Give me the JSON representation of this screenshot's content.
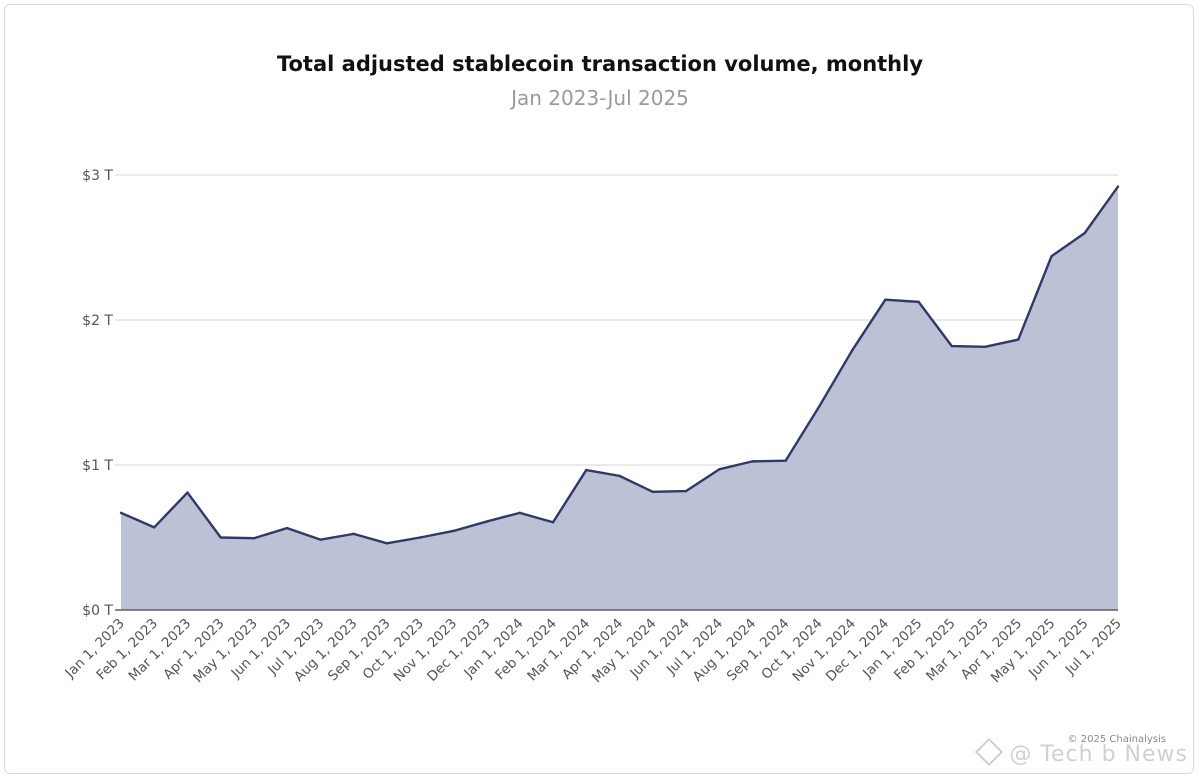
{
  "chart_data": {
    "type": "area",
    "title": "Total adjusted stablecoin transaction volume, monthly",
    "subtitle": "Jan 2023-Jul 2025",
    "x": [
      "Jan 1, 2023",
      "Feb 1, 2023",
      "Mar 1, 2023",
      "Apr 1, 2023",
      "May 1, 2023",
      "Jun 1, 2023",
      "Jul 1, 2023",
      "Aug 1, 2023",
      "Sep 1, 2023",
      "Oct 1, 2023",
      "Nov 1, 2023",
      "Dec 1, 2023",
      "Jan 1, 2024",
      "Feb 1, 2024",
      "Mar 1, 2024",
      "Apr 1, 2024",
      "May 1, 2024",
      "Jun 1, 2024",
      "Jul 1, 2024",
      "Aug 1, 2024",
      "Sep 1, 2024",
      "Oct 1, 2024",
      "Nov 1, 2024",
      "Dec 1, 2024",
      "Jan 1, 2025",
      "Feb 1, 2025",
      "Mar 1, 2025",
      "Apr 1, 2025",
      "May 1, 2025",
      "Jun 1, 2025",
      "Jul 1, 2025"
    ],
    "series": [
      {
        "values": [
          0.67,
          0.57,
          0.81,
          0.5,
          0.495,
          0.565,
          0.485,
          0.525,
          0.46,
          0.5,
          0.545,
          0.61,
          0.67,
          0.605,
          0.965,
          0.925,
          0.815,
          0.82,
          0.97,
          1.025,
          1.03,
          1.4,
          1.79,
          2.14,
          2.125,
          1.82,
          1.815,
          1.865,
          2.44,
          2.6,
          2.92
        ]
      }
    ],
    "yticks": [
      {
        "value": 0,
        "label": "$0 T"
      },
      {
        "value": 1,
        "label": "$1 T"
      },
      {
        "value": 2,
        "label": "$2 T"
      },
      {
        "value": 3,
        "label": "$3 T"
      }
    ],
    "ylim": [
      0,
      3
    ],
    "xlabel": "",
    "ylabel": "",
    "grid": true,
    "legend": "none",
    "colors": {
      "line": "#2f3a68",
      "fill": "#bcc1d5",
      "grid": "#d4d4d4",
      "axis": "#444444"
    }
  },
  "footer": {
    "copyright": "© 2025 Chainalysis",
    "watermark": "@ Tech b News"
  }
}
